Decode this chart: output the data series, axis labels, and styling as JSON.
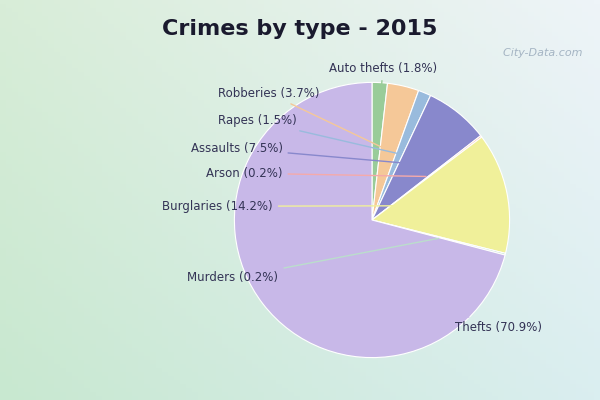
{
  "title": "Crimes by type - 2015",
  "order_labels": [
    "Auto thefts",
    "Robberies",
    "Rapes",
    "Assaults",
    "Arson",
    "Burglaries",
    "Murders",
    "Thefts"
  ],
  "order_values": [
    1.8,
    3.7,
    1.5,
    7.5,
    0.2,
    14.2,
    0.2,
    70.9
  ],
  "order_colors": [
    "#99cc99",
    "#f5c898",
    "#99bbdd",
    "#8888cc",
    "#f5aaaa",
    "#f0f09a",
    "#bbddcc",
    "#c8b8e8"
  ],
  "order_texts": {
    "Auto thefts": "Auto thefts (1.8%)",
    "Robberies": "Robberies (3.7%)",
    "Rapes": "Rapes (1.5%)",
    "Assaults": "Assaults (7.5%)",
    "Arson": "Arson (0.2%)",
    "Burglaries": "Burglaries (14.2%)",
    "Murders": "Murders (0.2%)",
    "Thefts": "Thefts (70.9%)"
  },
  "background_border": "#00e5ff",
  "background_fill_tl": "#c8e8d0",
  "background_fill_br": "#e8f0f8",
  "title_fontsize": 16,
  "label_fontsize": 8.5,
  "watermark": "  City-Data.com"
}
